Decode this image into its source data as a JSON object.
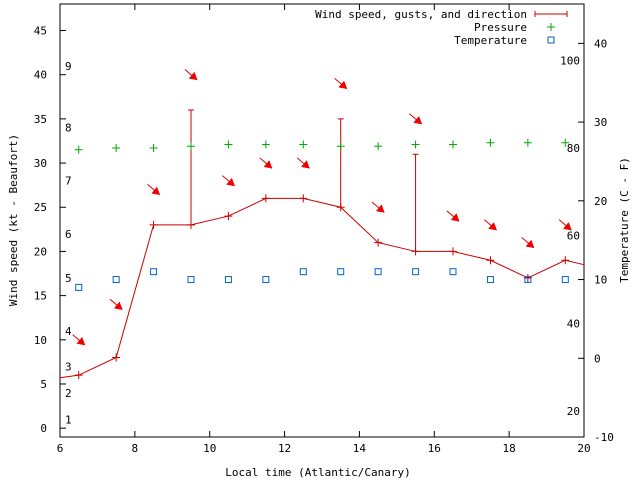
{
  "chart_data": {
    "type": "line",
    "xlabel": "Local time (Atlantic/Canary)",
    "ylabel": "Wind speed (kt - Beaufort)",
    "y2label": "Temperature (C - F)",
    "xlim": [
      6,
      20
    ],
    "ylim": [
      -1,
      48
    ],
    "y2lim": [
      -10,
      45
    ],
    "x_ticks": [
      6,
      8,
      10,
      12,
      14,
      16,
      18,
      20
    ],
    "y_ticks": [
      0,
      5,
      10,
      15,
      20,
      25,
      30,
      35,
      40,
      45
    ],
    "y2_ticks": [
      -10,
      0,
      10,
      20,
      30,
      40
    ],
    "fahrenheit_labels": [
      {
        "label": "20",
        "temp_c": -6.7
      },
      {
        "label": "40",
        "temp_c": 4.4
      },
      {
        "label": "60",
        "temp_c": 15.6
      },
      {
        "label": "80",
        "temp_c": 26.7
      },
      {
        "label": "100",
        "temp_c": 37.8
      }
    ],
    "beaufort_labels": [
      {
        "label": "1",
        "wind_kt": 1
      },
      {
        "label": "2",
        "wind_kt": 4
      },
      {
        "label": "3",
        "wind_kt": 7
      },
      {
        "label": "4",
        "wind_kt": 11
      },
      {
        "label": "5",
        "wind_kt": 17
      },
      {
        "label": "6",
        "wind_kt": 22
      },
      {
        "label": "7",
        "wind_kt": 28
      },
      {
        "label": "8",
        "wind_kt": 34
      },
      {
        "label": "9",
        "wind_kt": 41
      }
    ],
    "legend": [
      {
        "label": "Wind speed, gusts, and direction",
        "color": "#cc0000",
        "marker": "plus-line"
      },
      {
        "label": "Pressure",
        "color": "#00aa00",
        "marker": "plus"
      },
      {
        "label": "Temperature",
        "color": "#0066cc",
        "marker": "square"
      }
    ],
    "series": [
      {
        "name": "Wind speed",
        "color": "#cc0000",
        "axis": "y",
        "x": [
          6,
          6.5,
          7.5,
          8.5,
          9.5,
          10.5,
          11.5,
          12.5,
          13.5,
          14.5,
          15.5,
          16.5,
          17.5,
          18.5,
          19.5,
          20
        ],
        "values": [
          5.7,
          6,
          8,
          23,
          23,
          24,
          26,
          26,
          25,
          21,
          20,
          20,
          19,
          17,
          19,
          18.5
        ]
      },
      {
        "name": "Gusts",
        "color": "#cc0000",
        "axis": "y",
        "points": [
          {
            "x": 9.5,
            "low": 23,
            "high": 36
          },
          {
            "x": 13.5,
            "low": 25,
            "high": 35
          },
          {
            "x": 15.5,
            "low": 20,
            "high": 31
          }
        ]
      },
      {
        "name": "Direction",
        "color": "#ee0000",
        "axis": "y",
        "x": [
          6.5,
          7.5,
          8.5,
          9.5,
          10.5,
          11.5,
          12.5,
          13.5,
          14.5,
          15.5,
          16.5,
          17.5,
          18.5,
          19.5
        ],
        "values": [
          10,
          14,
          27,
          40,
          28,
          30,
          30,
          39,
          25,
          35,
          24,
          23,
          21,
          23
        ],
        "angles_deg": [
          40,
          40,
          40,
          40,
          40,
          40,
          40,
          40,
          40,
          40,
          40,
          40,
          40,
          40
        ]
      },
      {
        "name": "Pressure",
        "color": "#00aa00",
        "axis": "y",
        "x": [
          6.5,
          7.5,
          8.5,
          9.5,
          10.5,
          11.5,
          12.5,
          13.5,
          14.5,
          15.5,
          16.5,
          17.5,
          18.5,
          19.5
        ],
        "values": [
          31.5,
          31.7,
          31.7,
          31.9,
          32.1,
          32.1,
          32.1,
          31.9,
          31.9,
          32.1,
          32.1,
          32.3,
          32.3,
          32.3
        ]
      },
      {
        "name": "Temperature",
        "color": "#0066cc",
        "axis": "y2",
        "x": [
          6.5,
          7.5,
          8.5,
          9.5,
          10.5,
          11.5,
          12.5,
          13.5,
          14.5,
          15.5,
          16.5,
          17.5,
          18.5,
          19.5
        ],
        "values": [
          9,
          10,
          11,
          10,
          10,
          10,
          11,
          11,
          11,
          11,
          11,
          10,
          10,
          10
        ]
      }
    ]
  }
}
